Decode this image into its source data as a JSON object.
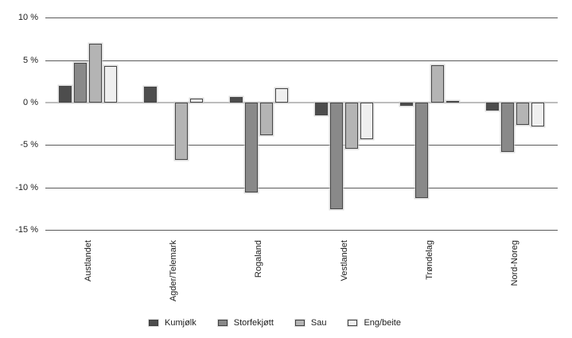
{
  "chart_data": {
    "type": "bar",
    "title": "",
    "xlabel": "",
    "ylabel": "",
    "ylim": [
      -15,
      10
    ],
    "ytick_step": 5,
    "yticks": [
      10,
      5,
      0,
      -5,
      -10,
      -15
    ],
    "ytick_labels": [
      "10 %",
      "5 %",
      "0 %",
      "-5 %",
      "-10 %",
      "-15 %"
    ],
    "grid": true,
    "legend_position": "bottom",
    "categories": [
      "Austlandet",
      "Agder/Telemark",
      "Rogaland",
      "Vestlandet",
      "Trøndelag",
      "Nord-Noreg"
    ],
    "series": [
      {
        "name": "Kumjølk",
        "color": "#4d4d4d",
        "values": [
          2.0,
          1.9,
          0.7,
          -1.5,
          -0.3,
          -0.9
        ]
      },
      {
        "name": "Storfekjøtt",
        "color": "#898989",
        "values": [
          4.7,
          0.0,
          -10.5,
          -12.5,
          -11.2,
          -5.8
        ]
      },
      {
        "name": "Sau",
        "color": "#b4b4b4",
        "values": [
          7.0,
          -6.7,
          -3.8,
          -5.4,
          4.4,
          -2.6
        ]
      },
      {
        "name": "Eng/beite",
        "color": "#efefef",
        "values": [
          4.3,
          0.5,
          1.7,
          -4.3,
          0.2,
          -2.8
        ]
      }
    ],
    "colors": {
      "gridline": "#5a5a5a",
      "zero_line": "#bdbdbd",
      "text": "#1c1c1c",
      "background": "#ffffff"
    }
  }
}
